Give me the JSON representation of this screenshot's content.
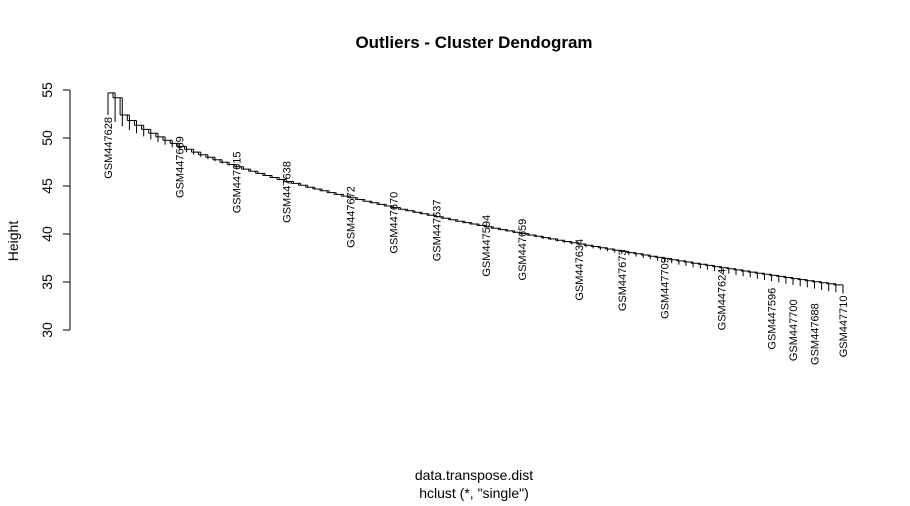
{
  "chart_data": {
    "type": "dendrogram",
    "title": "Outliers - Cluster Dendogram",
    "ylabel": "Height",
    "xlabel": "data.transpose.dist",
    "sub": "hclust (*, \"single\")",
    "ylim": [
      30,
      55
    ],
    "y_ticks": [
      30,
      35,
      40,
      45,
      50,
      55
    ],
    "grid": false,
    "leaf_count": 104,
    "leaf_labels": [
      {
        "label": "GSM447628",
        "height": 52.4
      },
      {
        "label": "GSM447669",
        "height": 50.4
      },
      {
        "label": "GSM447615",
        "height": 48.8
      },
      {
        "label": "GSM447638",
        "height": 47.8
      },
      {
        "label": "GSM447672",
        "height": 45.2
      },
      {
        "label": "GSM447670",
        "height": 44.6
      },
      {
        "label": "GSM447637",
        "height": 43.8
      },
      {
        "label": "GSM447594",
        "height": 42.2
      },
      {
        "label": "GSM447659",
        "height": 41.8
      },
      {
        "label": "GSM447634",
        "height": 39.7
      },
      {
        "label": "GSM447673",
        "height": 38.6
      },
      {
        "label": "GSM447709",
        "height": 37.8
      },
      {
        "label": "GSM447624",
        "height": 36.6
      },
      {
        "label": "GSM447596",
        "height": 34.6
      },
      {
        "label": "GSM447700",
        "height": 33.4
      },
      {
        "label": "GSM447688",
        "height": 33.0
      },
      {
        "label": "GSM447710",
        "height": 33.8
      }
    ]
  }
}
